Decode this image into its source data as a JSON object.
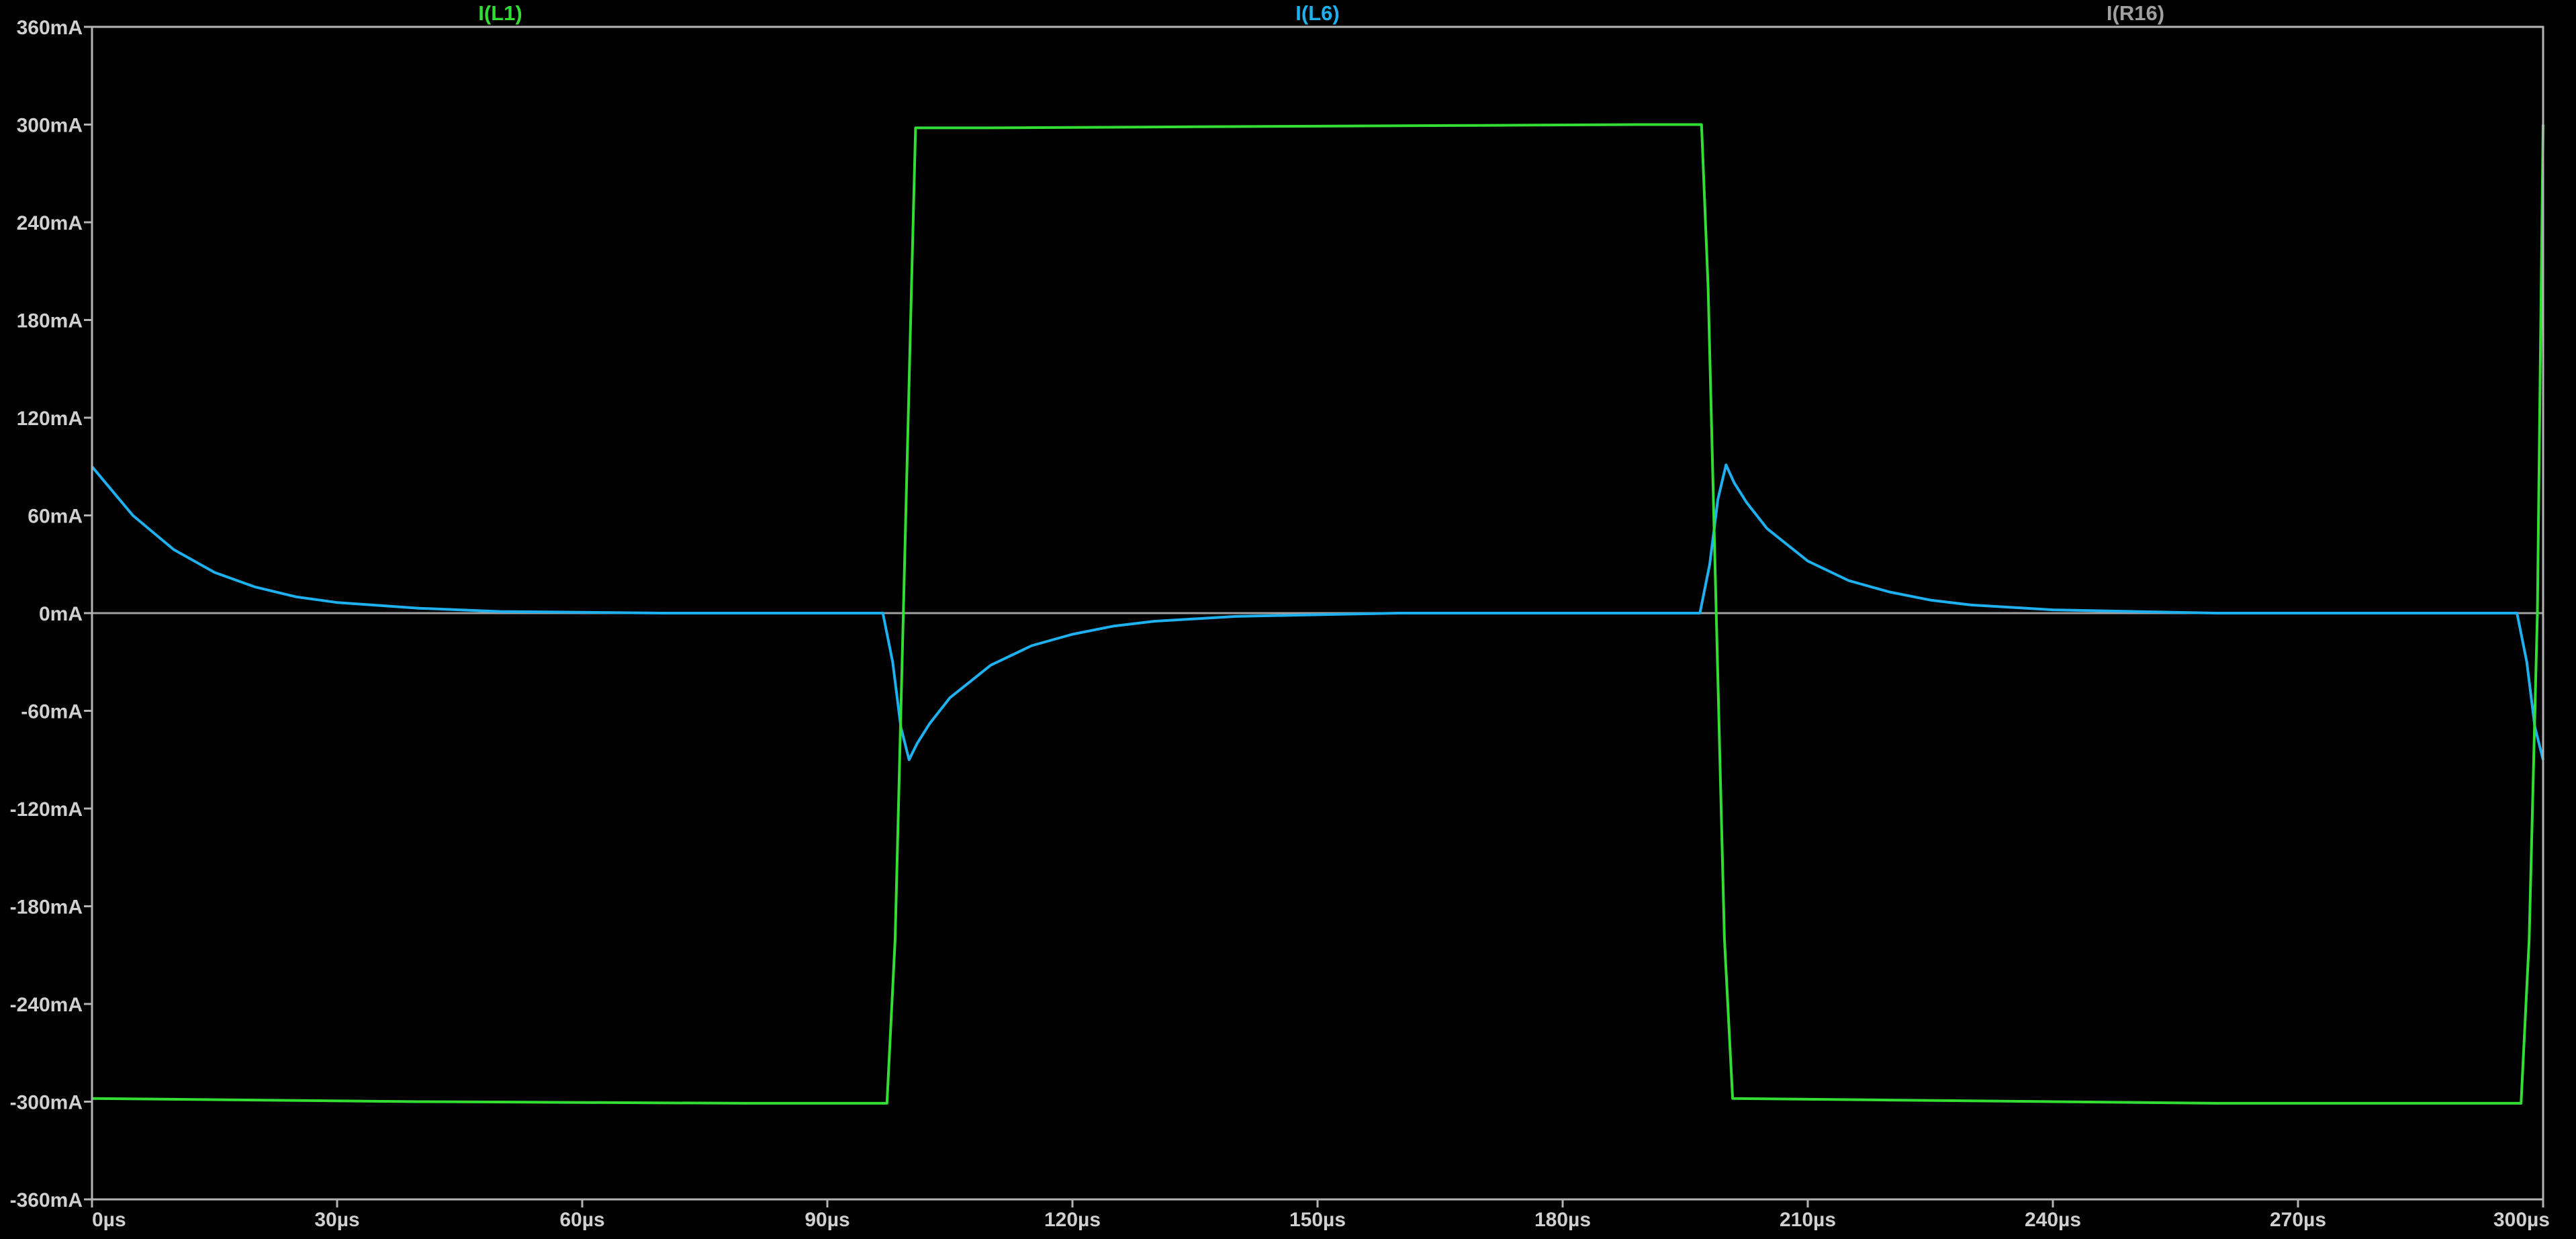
{
  "chart_data": {
    "type": "line",
    "title": "",
    "xlabel": "",
    "ylabel": "",
    "xlim": [
      0,
      300
    ],
    "ylim": [
      -360,
      360
    ],
    "x_unit": "µs",
    "y_unit": "mA",
    "x_ticks": [
      "0µs",
      "30µs",
      "60µs",
      "90µs",
      "120µs",
      "150µs",
      "180µs",
      "210µs",
      "240µs",
      "270µs",
      "300µs"
    ],
    "y_ticks": [
      "360mA",
      "300mA",
      "240mA",
      "180mA",
      "120mA",
      "60mA",
      "0mA",
      "-60mA",
      "-120mA",
      "-180mA",
      "-240mA",
      "-300mA",
      "-360mA"
    ],
    "x_tick_values": [
      0,
      30,
      60,
      90,
      120,
      150,
      180,
      210,
      240,
      270,
      300
    ],
    "y_tick_values": [
      360,
      300,
      240,
      180,
      120,
      60,
      0,
      -60,
      -120,
      -180,
      -240,
      -300,
      -360
    ],
    "grid": false,
    "legend_position": "top",
    "background": "#000000",
    "axis_color": "#b4b4b4",
    "series": [
      {
        "name": "I(L1)",
        "color": "#33dd33",
        "points": [
          [
            0,
            -298
          ],
          [
            20,
            -299
          ],
          [
            40,
            -300
          ],
          [
            60,
            -300.5
          ],
          [
            80,
            -301
          ],
          [
            97.3,
            -301
          ],
          [
            98.3,
            -200
          ],
          [
            99.3,
            0
          ],
          [
            100.3,
            200
          ],
          [
            100.8,
            298
          ],
          [
            110,
            298
          ],
          [
            130,
            298.5
          ],
          [
            150,
            299
          ],
          [
            170,
            299.5
          ],
          [
            189,
            300
          ],
          [
            197,
            300
          ],
          [
            197.8,
            200
          ],
          [
            198.8,
            0
          ],
          [
            199.8,
            -200
          ],
          [
            200.8,
            -298
          ],
          [
            220,
            -299
          ],
          [
            240,
            -300
          ],
          [
            260,
            -301
          ],
          [
            280,
            -301
          ],
          [
            297.3,
            -301
          ],
          [
            298.3,
            -200
          ],
          [
            299.3,
            0
          ],
          [
            300,
            300
          ]
        ]
      },
      {
        "name": "I(L6)",
        "color": "#1fb0f0",
        "points": [
          [
            0,
            90
          ],
          [
            5,
            60
          ],
          [
            10,
            39
          ],
          [
            15,
            25
          ],
          [
            20,
            16
          ],
          [
            25,
            10
          ],
          [
            30,
            6.5
          ],
          [
            40,
            3
          ],
          [
            50,
            1
          ],
          [
            60,
            0.5
          ],
          [
            70,
            0
          ],
          [
            96.8,
            0
          ],
          [
            98,
            -30
          ],
          [
            99,
            -70
          ],
          [
            100,
            -90
          ],
          [
            101,
            -80
          ],
          [
            102.5,
            -68
          ],
          [
            105,
            -52
          ],
          [
            110,
            -32
          ],
          [
            115,
            -20
          ],
          [
            120,
            -13
          ],
          [
            125,
            -8
          ],
          [
            130,
            -5
          ],
          [
            140,
            -2
          ],
          [
            150,
            -1
          ],
          [
            160,
            0
          ],
          [
            196.8,
            0
          ],
          [
            198,
            30
          ],
          [
            199,
            70
          ],
          [
            200,
            91
          ],
          [
            201,
            80
          ],
          [
            202.5,
            68
          ],
          [
            205,
            52
          ],
          [
            210,
            32
          ],
          [
            215,
            20
          ],
          [
            220,
            13
          ],
          [
            225,
            8
          ],
          [
            230,
            5
          ],
          [
            240,
            2
          ],
          [
            250,
            1
          ],
          [
            260,
            0
          ],
          [
            296.8,
            0
          ],
          [
            298,
            -30
          ],
          [
            299,
            -70
          ],
          [
            300,
            -90
          ]
        ]
      },
      {
        "name": "I(R16)",
        "color": "#a0a0a0",
        "points": [
          [
            0,
            0
          ],
          [
            300,
            0
          ]
        ]
      }
    ]
  }
}
